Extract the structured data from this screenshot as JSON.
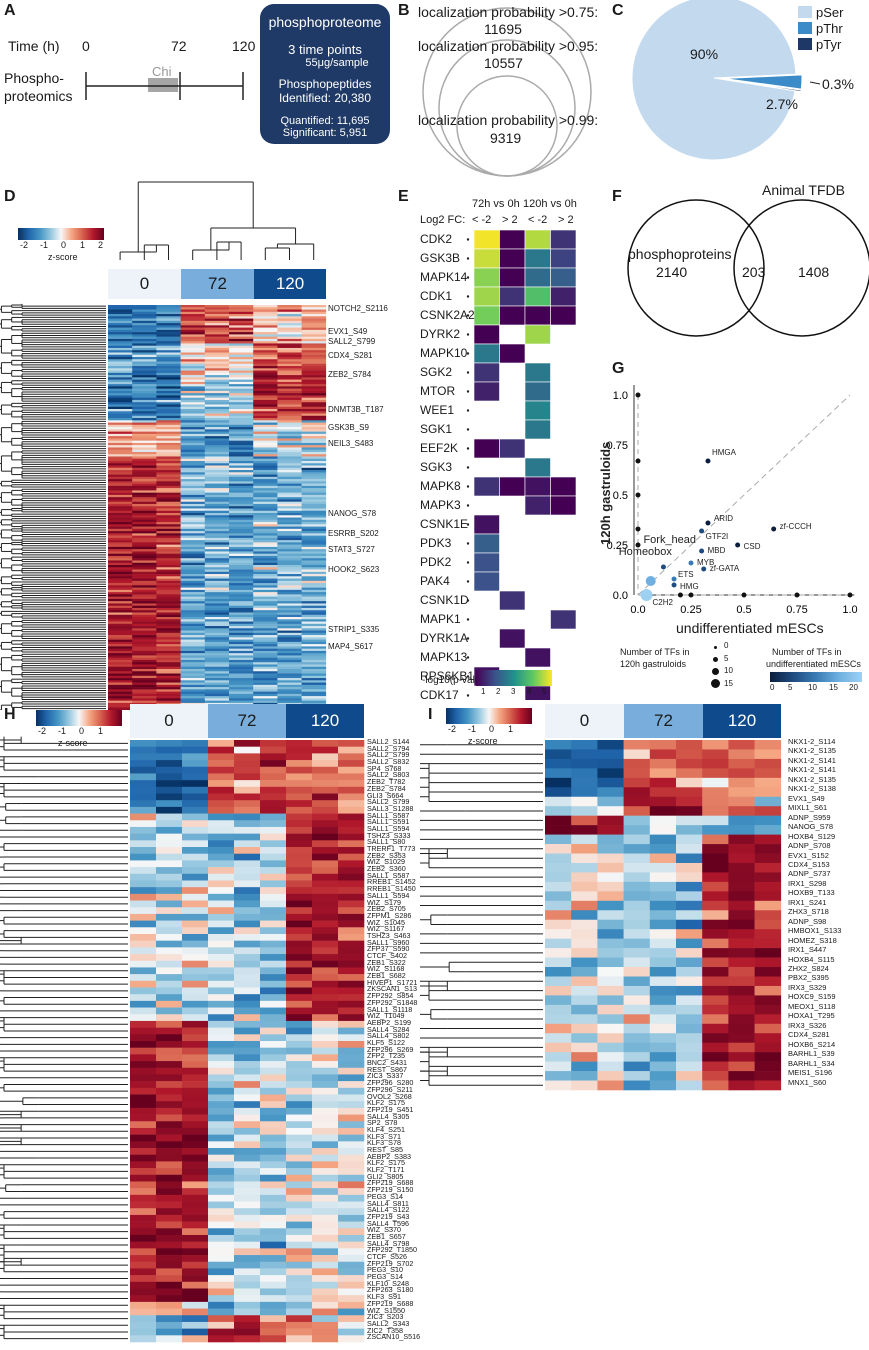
{
  "panels": {
    "a": "A",
    "b": "B",
    "c": "C",
    "d": "D",
    "e": "E",
    "f": "F",
    "g": "G",
    "h": "H",
    "i": "I"
  },
  "panelA": {
    "time_label": "Time (h)",
    "ticks": [
      "0",
      "72",
      "120"
    ],
    "chi": "Chi",
    "phospho_label_1": "Phospho-",
    "phospho_label_2": "proteomics",
    "box_title": "phosphoproteome",
    "box_line1": "3 time points",
    "box_line2": "55μg/sample",
    "box_line3": "Phosphopeptides",
    "box_line4": "Identified: 20,380",
    "box_line5": "Quantified: 11,695",
    "box_line6": "Significant: 5,951"
  },
  "panelB": {
    "l1": "localization probability >0.75:",
    "v1": "11695",
    "l2": "localization probability >0.95:",
    "v2": "10557",
    "l3": "localization probability >0.99:",
    "v3": "9319"
  },
  "panelC": {
    "legend": [
      {
        "label": "pSer",
        "color": "#c2d9ee"
      },
      {
        "label": "pThr",
        "color": "#3b8bc8"
      },
      {
        "label": "pTyr",
        "color": "#1d3766"
      }
    ],
    "slice_labels": [
      "90%",
      "2.7%",
      "0.3%"
    ],
    "chart_data": {
      "type": "pie",
      "categories": [
        "pSer",
        "pThr",
        "pTyr"
      ],
      "values": [
        90,
        2.7,
        0.3
      ]
    }
  },
  "heat_common": {
    "groups": [
      "0",
      "72",
      "120"
    ],
    "colorbar_ticks": [
      "-2",
      "-1",
      "0",
      "1",
      "2"
    ],
    "colorbar_label": "z-score"
  },
  "panelD": {
    "labels": [
      "NOTCH2_S2116",
      "EVX1_S49",
      "SALL2_S799",
      "CDX4_S281",
      "ZEB2_S784",
      "DNMT3B_T187",
      "GSK3B_S9",
      "NEIL3_S483",
      "NANOG_S78",
      "ESRRB_S202",
      "STAT3_S727",
      "HOOK2_S623",
      "STRIP1_S335",
      "MAP4_S617"
    ]
  },
  "panelE": {
    "col_header1": "72h vs 0h",
    "col_header2": "120h vs 0h",
    "fc_label": "Log2 FC:",
    "fc_cols": [
      "< -2",
      "> 2",
      "< -2",
      "> 2"
    ],
    "kinases": [
      "CDK2",
      "GSK3B",
      "MAPK14",
      "CDK1",
      "CSNK2A2",
      "DYRK2",
      "MAPK10",
      "SGK2",
      "MTOR",
      "WEE1",
      "SGK1",
      "EEF2K",
      "SGK3",
      "MAPK8",
      "MAPK3",
      "CSNK1E",
      "PDK3",
      "PDK2",
      "PAK4",
      "CSNK1D",
      "MAPK1",
      "DYRK1A",
      "MAPK13",
      "RPS6KB1",
      "CDK17"
    ],
    "cbar_label": "-log10(p-value)",
    "cbar_ticks": [
      "1",
      "2",
      "3",
      "4",
      "5"
    ],
    "chart_data": {
      "type": "heatmap",
      "columns": [
        "72h < -2",
        "72h > 2",
        "120h < -2",
        "120h > 2"
      ],
      "values": [
        [
          5.4,
          1.0,
          4.8,
          1.6
        ],
        [
          5.0,
          0.8,
          2.6,
          1.8
        ],
        [
          4.4,
          0.6,
          2.4,
          2.2
        ],
        [
          4.6,
          1.6,
          3.8,
          1.4
        ],
        [
          4.2,
          0.7,
          1.0,
          0.8
        ],
        [
          1.0,
          null,
          4.6,
          null
        ],
        [
          2.6,
          0.8,
          null,
          null
        ],
        [
          1.6,
          null,
          2.6,
          null
        ],
        [
          1.4,
          null,
          2.4,
          null
        ],
        [
          null,
          null,
          2.8,
          null
        ],
        [
          null,
          null,
          2.6,
          null
        ],
        [
          1.0,
          1.6,
          null,
          null
        ],
        [
          null,
          null,
          2.6,
          null
        ],
        [
          1.6,
          0.6,
          1.2,
          0.6
        ],
        [
          null,
          null,
          1.4,
          0.9
        ],
        [
          1.2,
          null,
          null,
          null
        ],
        [
          2.2,
          null,
          null,
          null
        ],
        [
          2.0,
          null,
          null,
          null
        ],
        [
          2.0,
          null,
          null,
          null
        ],
        [
          null,
          1.6,
          null,
          null
        ],
        [
          null,
          null,
          null,
          1.6
        ],
        [
          null,
          1.2,
          null,
          null
        ],
        [
          null,
          null,
          1.2,
          null
        ],
        [
          1.2,
          null,
          null,
          null
        ],
        [
          null,
          null,
          1.2,
          null
        ]
      ]
    }
  },
  "panelF": {
    "title": "Animal TFDB",
    "left_label": "phosphoproteins",
    "left_value": "2140",
    "mid_value": "203",
    "right_value": "1408",
    "chart_data": {
      "type": "venn",
      "sets": [
        "phosphoproteins",
        "Animal TFDB"
      ],
      "only_left": 2140,
      "both": 203,
      "only_right": 1408
    }
  },
  "panelG": {
    "xlabel": "undifferentiated mESCs",
    "ylabel": "120h gastruloids",
    "xticks": [
      "0.0",
      "0.25",
      "0.5",
      "0.75",
      "1.0"
    ],
    "yticks": [
      "0.0",
      "0.25",
      "0.5",
      "0.75",
      "1.0"
    ],
    "annotations": [
      "HMGA",
      "ARID",
      "zf-CCCH",
      "GTF2I",
      "CSD",
      "MBD",
      "MYB",
      "zf-GATA",
      "ETS",
      "HMG",
      "C2H2",
      "Fork_head",
      "Homeobox"
    ],
    "legend1_title1": "Number of TFs in",
    "legend1_title2": "120h gastruloids",
    "legend1_items": [
      "0",
      "5",
      "10",
      "15"
    ],
    "legend2_title1": "Number of TFs in",
    "legend2_title2": "undifferentiated mESCs",
    "legend2_ticks": [
      "0",
      "5",
      "10",
      "15",
      "20"
    ],
    "chart_data": {
      "type": "scatter",
      "xlim": [
        0,
        1
      ],
      "ylim": [
        0,
        1
      ],
      "points": [
        {
          "name": "HMGA",
          "x": 0.33,
          "y": 0.67
        },
        {
          "name": "ARID",
          "x": 0.33,
          "y": 0.36
        },
        {
          "name": "zf-CCCH",
          "x": 0.64,
          "y": 0.33
        },
        {
          "name": "GTF2I",
          "x": 0.3,
          "y": 0.32
        },
        {
          "name": "CSD",
          "x": 0.47,
          "y": 0.25
        },
        {
          "name": "MBD",
          "x": 0.3,
          "y": 0.22
        },
        {
          "name": "MYB",
          "x": 0.25,
          "y": 0.16
        },
        {
          "name": "zf-GATA",
          "x": 0.31,
          "y": 0.13
        },
        {
          "name": "ETS",
          "x": 0.17,
          "y": 0.08
        },
        {
          "name": "HMG",
          "x": 0.17,
          "y": 0.05
        },
        {
          "name": "C2H2",
          "x": 0.04,
          "y": 0.0
        },
        {
          "name": "Fork_head",
          "x": 0.12,
          "y": 0.14
        },
        {
          "name": "Homeobox",
          "x": 0.06,
          "y": 0.07
        },
        {
          "x": 0.0,
          "y": 1.0
        },
        {
          "x": 0.0,
          "y": 0.67
        },
        {
          "x": 0.0,
          "y": 0.5
        },
        {
          "x": 0.0,
          "y": 0.33
        },
        {
          "x": 0.0,
          "y": 0.25
        },
        {
          "x": 0.25,
          "y": 0.0
        },
        {
          "x": 0.5,
          "y": 0.0
        },
        {
          "x": 0.75,
          "y": 0.0
        },
        {
          "x": 1.0,
          "y": 0.0
        },
        {
          "x": 0.2,
          "y": 0.0
        }
      ]
    }
  },
  "panelH": {
    "labels": [
      "SALL2_S144",
      "SALL2_S794",
      "SALL2_S799",
      "SALL2_S832",
      "SP4_S768",
      "SALL2_S803",
      "ZEB2_T782",
      "ZEB2_S784",
      "GLI3_S664",
      "SALL2_S799",
      "SALL3_S1288",
      "SALL1_S587",
      "SALL1_S591",
      "SALL1_S594",
      "TSHZ3_S333",
      "SALL1_S80",
      "TRERF1_T773",
      "ZEB2_S353",
      "WIZ_S1029",
      "ZEB2_S360",
      "SALL1_S587",
      "RREB1_S1452",
      "RREB1_S1450",
      "SALL1_S594",
      "WIZ_S179",
      "ZEB2_S705",
      "ZFPM1_S286",
      "WIZ_S1045",
      "WIZ_S1167",
      "TSHZ3_S463",
      "SALL1_S960",
      "ZFP37_S590",
      "CTCF_S402",
      "ZEB1_S322",
      "WIZ_S1168",
      "ZEB1_S682",
      "HIVEP1_S1721",
      "ZKSCAN1_S13",
      "ZFP292_S854",
      "ZFP292_S1848",
      "SALL1_S1118",
      "WIZ_T1049",
      "AEBP2_S199",
      "SALL4_S284",
      "SALL4_S802",
      "KLF5_S122",
      "ZFP296_S269",
      "ZFP2_T235",
      "BNC2_S431",
      "REST_S867",
      "ZIC3_S337",
      "ZFP296_S280",
      "ZFP296_S211",
      "OVOL2_S268",
      "KLF2_S175",
      "ZFP219_S451",
      "SALL4_S305",
      "SP2_S78",
      "KLF4_S251",
      "KLF3_S71",
      "KLF3_S78",
      "REST_S85",
      "AEBP2_S383",
      "KLF2_S175",
      "KLF2_T171",
      "GLI2_S805",
      "ZFP219_S688",
      "ZFP219_S150",
      "PEG3_S14",
      "SALL4_S811",
      "SALL4_S122",
      "ZFP219_S43",
      "SALL4_T596",
      "WIZ_S370",
      "ZEB1_S657",
      "SALL4_S798",
      "ZFP292_T1850",
      "CTCF_S526",
      "ZFP219_S702",
      "PEG3_S10",
      "PEG3_S14",
      "KLF10_S248",
      "ZFP263_S180",
      "KLF3_S91",
      "ZFP219_S688",
      "WIZ_S1550",
      "ZIC3_S203",
      "SALL2_S343",
      "ZIC2_T358",
      "ZSCAN10_S516"
    ]
  },
  "panelI": {
    "labels": [
      "NKX1-2_S114",
      "NKX1-2_S135",
      "NKX1-2_S141",
      "NKX1-2_S141",
      "NKX1-2_S135",
      "NKX1-2_S138",
      "EVX1_S49",
      "MIXL1_S61",
      "ADNP_S959",
      "NANOG_S78",
      "HOXB4_S129",
      "ADNP_S708",
      "EVX1_S152",
      "CDX4_S153",
      "ADNP_S737",
      "IRX1_S298",
      "HOXB9_T133",
      "IRX1_S241",
      "ZHX3_S718",
      "ADNP_S98",
      "HMBOX1_S133",
      "HOMEZ_S318",
      "IRX1_S447",
      "HOXB4_S115",
      "ZHX2_S824",
      "PBX2_S395",
      "IRX3_S329",
      "HOXC9_S159",
      "MEOX1_S118",
      "HOXA1_T295",
      "IRX3_S326",
      "CDX4_S281",
      "HOXB6_S214",
      "BARHL1_S39",
      "BARHL1_S34",
      "MEIS1_S196",
      "MNX1_S60"
    ]
  },
  "colors": {
    "navy": "#1f3a66",
    "group0": "#eef3fa",
    "group72": "#79aedc",
    "group120": "#0f4a8c"
  }
}
